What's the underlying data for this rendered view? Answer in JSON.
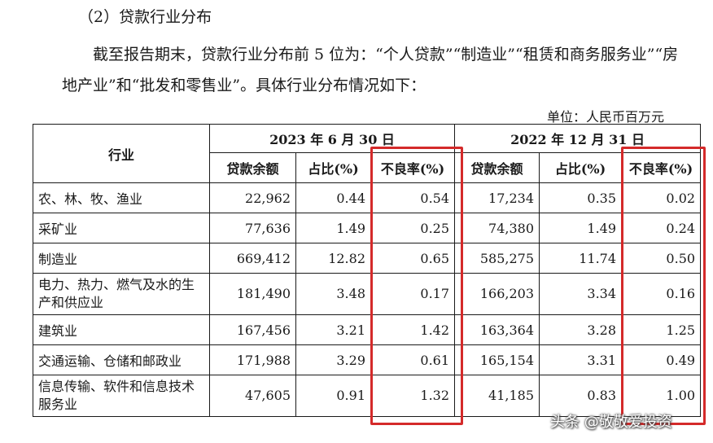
{
  "section_heading": "（2）贷款行业分布",
  "paragraph": "截至报告期末，贷款行业分布前 5 位为：“个人贷款”“制造业”“租赁和商务服务业”“房地产业”和“批发和零售业”。具体行业分布情况如下：",
  "unit": "单位：人民币百万元",
  "table": {
    "industry_header": "行业",
    "period1": "2023 年 6 月 30 日",
    "period2": "2022 年 12 月 31 日",
    "col_balance": "贷款余额",
    "col_ratio": "占比(%)",
    "col_npl": "不良率(%)",
    "rows": [
      {
        "industry": "农、林、牧、渔业",
        "b1": "22,962",
        "r1": "0.44",
        "n1": "0.54",
        "b2": "17,234",
        "r2": "0.35",
        "n2": "0.02"
      },
      {
        "industry": "采矿业",
        "b1": "77,636",
        "r1": "1.49",
        "n1": "0.25",
        "b2": "74,380",
        "r2": "1.49",
        "n2": "0.24"
      },
      {
        "industry": "制造业",
        "b1": "669,412",
        "r1": "12.82",
        "n1": "0.65",
        "b2": "585,275",
        "r2": "11.74",
        "n2": "0.50"
      },
      {
        "industry": "电力、热力、燃气及水的生产和供应业",
        "b1": "181,490",
        "r1": "3.48",
        "n1": "0.17",
        "b2": "166,203",
        "r2": "3.34",
        "n2": "0.16"
      },
      {
        "industry": "建筑业",
        "b1": "167,456",
        "r1": "3.21",
        "n1": "1.42",
        "b2": "163,364",
        "r2": "3.28",
        "n2": "1.25"
      },
      {
        "industry": "交通运输、仓储和邮政业",
        "b1": "171,988",
        "r1": "3.29",
        "n1": "0.61",
        "b2": "165,154",
        "r2": "3.31",
        "n2": "0.49"
      },
      {
        "industry": "信息传输、软件和信息技术服务业",
        "b1": "47,605",
        "r1": "0.91",
        "n1": "1.32",
        "b2": "41,185",
        "r2": "0.83",
        "n2": "1.00"
      }
    ]
  },
  "highlight_color": "#d42a2a",
  "watermark": "头条 @敬敬爱投资"
}
